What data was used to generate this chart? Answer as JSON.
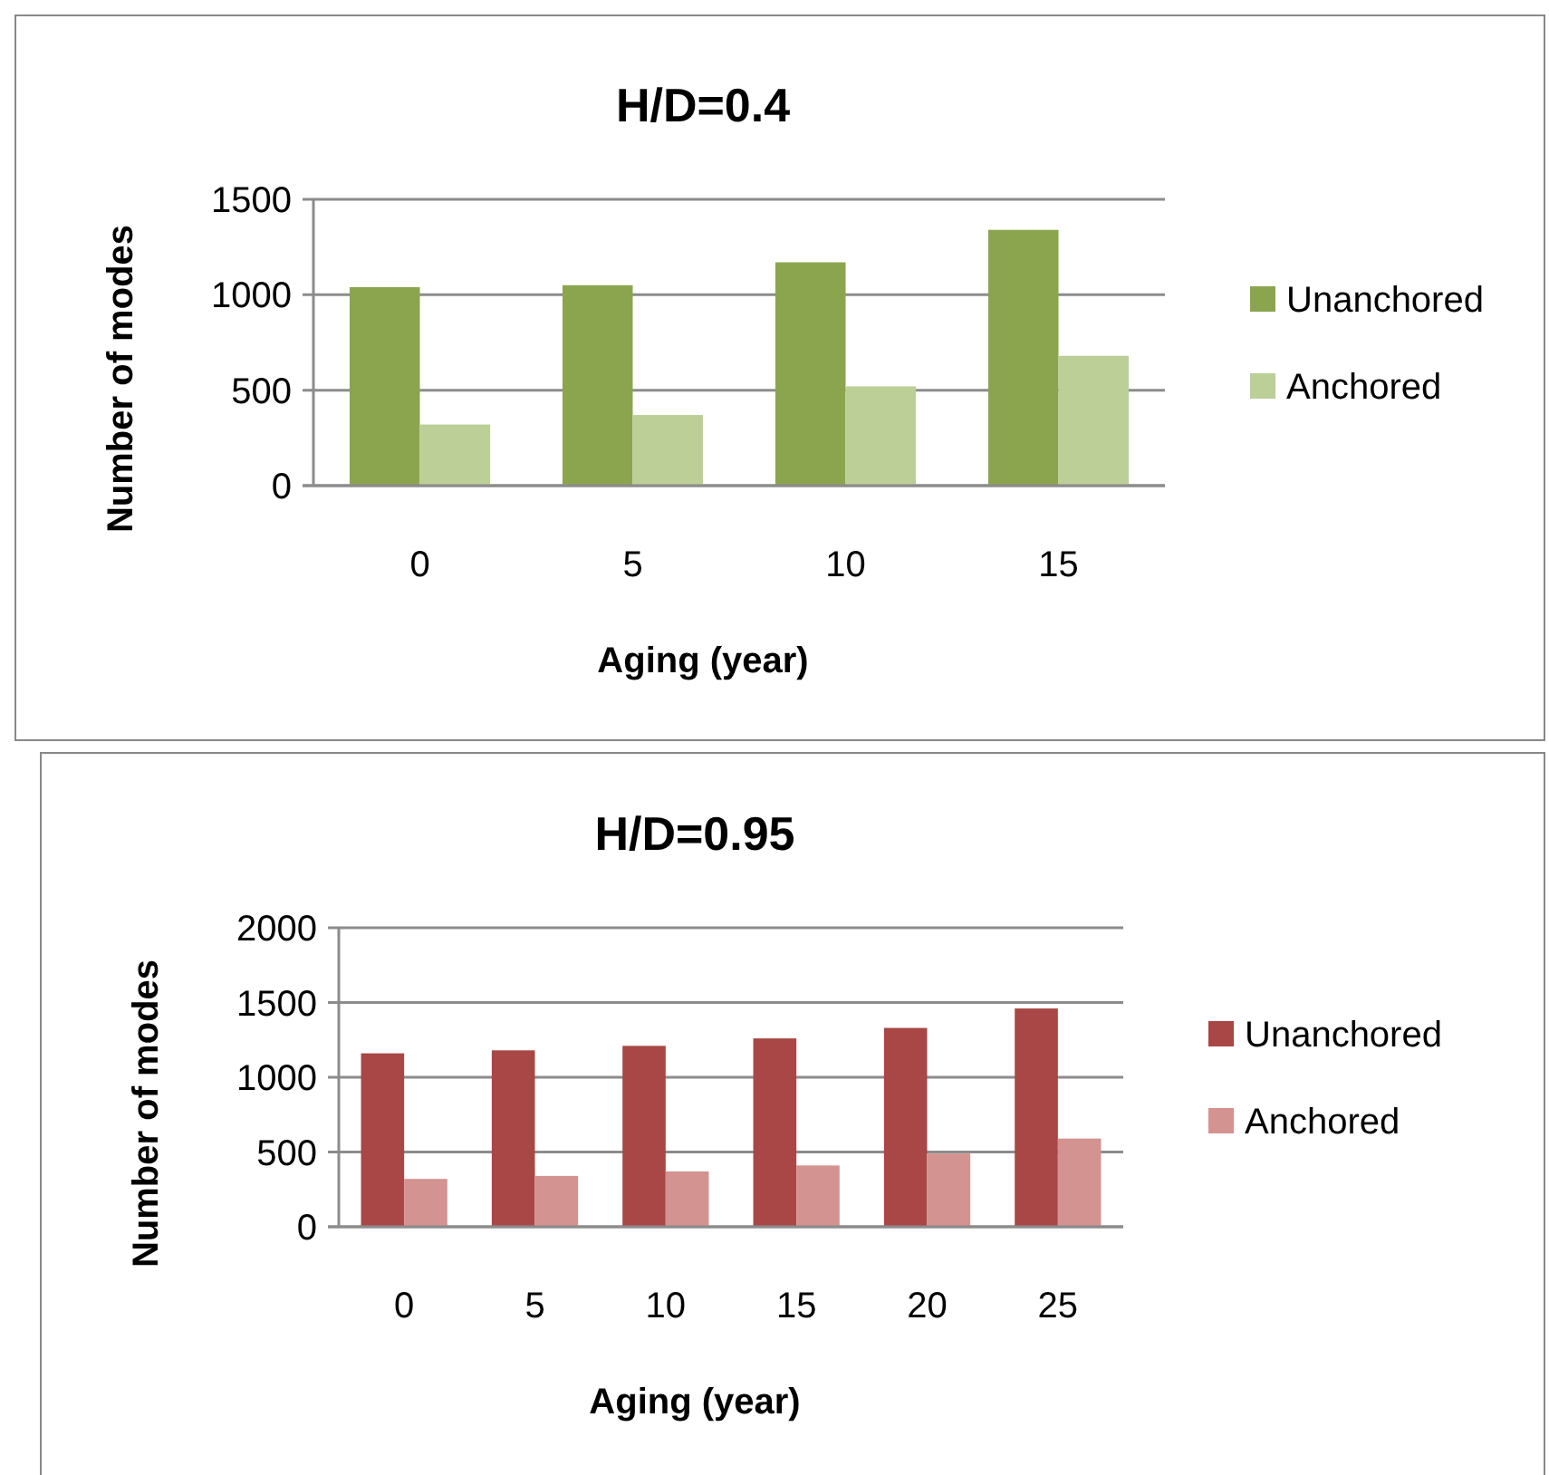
{
  "chart_data": [
    {
      "type": "bar",
      "title": "H/D=0.4",
      "xlabel": "Aging (year)",
      "ylabel": "Number of modes",
      "categories": [
        "0",
        "5",
        "10",
        "15"
      ],
      "series": [
        {
          "name": "Unanchored",
          "color": "#8ba54e",
          "values": [
            1040,
            1050,
            1170,
            1340
          ]
        },
        {
          "name": "Anchored",
          "color": "#bbcf97",
          "values": [
            320,
            370,
            520,
            680
          ]
        }
      ],
      "ylim": [
        0,
        1500
      ],
      "yticks": [
        0,
        500,
        1000,
        1500
      ],
      "grid": "y",
      "legend": "right"
    },
    {
      "type": "bar",
      "title": "H/D=0.95",
      "xlabel": "Aging (year)",
      "ylabel": "Number of modes",
      "categories": [
        "0",
        "5",
        "10",
        "15",
        "20",
        "25"
      ],
      "series": [
        {
          "name": "Unanchored",
          "color": "#a84745",
          "values": [
            1160,
            1180,
            1210,
            1260,
            1330,
            1460
          ]
        },
        {
          "name": "Anchored",
          "color": "#d39391",
          "values": [
            320,
            340,
            370,
            410,
            490,
            590
          ]
        }
      ],
      "ylim": [
        0,
        2000
      ],
      "yticks": [
        0,
        500,
        1000,
        1500,
        2000
      ],
      "grid": "y",
      "legend": "right"
    }
  ]
}
